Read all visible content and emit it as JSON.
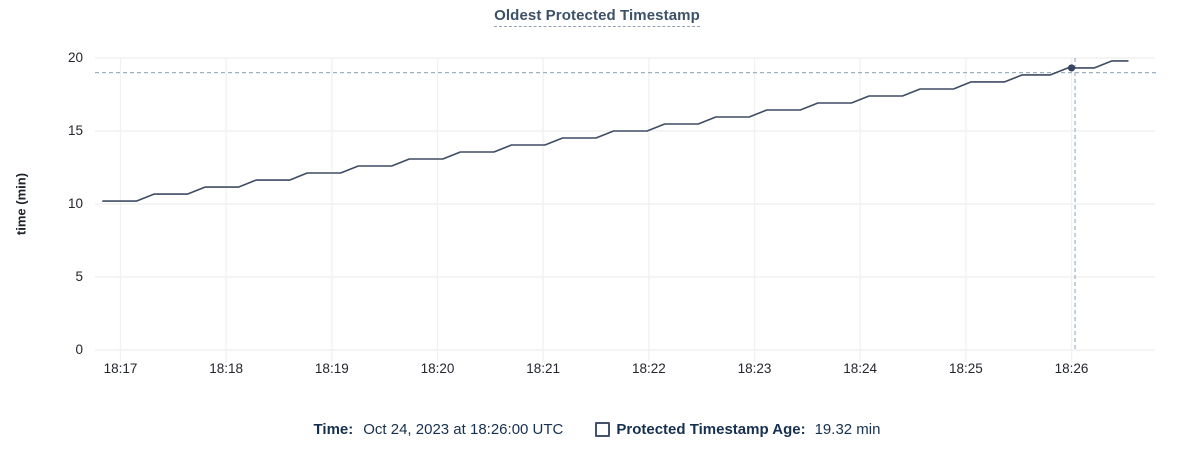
{
  "chart_data": {
    "type": "line",
    "title": "Oldest Protected Timestamp",
    "ylabel": "time (min)",
    "xlabel": "",
    "ylim": [
      0,
      20
    ],
    "y_ticks": [
      0,
      5,
      10,
      15,
      20
    ],
    "x_tick_labels": [
      "18:17",
      "18:18",
      "18:19",
      "18:20",
      "18:21",
      "18:22",
      "18:23",
      "18:24",
      "18:25",
      "18:26"
    ],
    "x_tick_times_s": [
      0,
      60,
      120,
      180,
      240,
      300,
      360,
      420,
      480,
      540
    ],
    "x_range_s": [
      -10,
      572
    ],
    "grid": true,
    "legend_position": "bottom",
    "series": [
      {
        "name": "Protected Timestamp Age",
        "unit": "min",
        "points": [
          [
            -10,
            10.2
          ],
          [
            9,
            10.2
          ],
          [
            19,
            10.68
          ],
          [
            38,
            10.68
          ],
          [
            48,
            11.16
          ],
          [
            67,
            11.16
          ],
          [
            77,
            11.64
          ],
          [
            96,
            11.64
          ],
          [
            106,
            12.12
          ],
          [
            125,
            12.12
          ],
          [
            135,
            12.6
          ],
          [
            154,
            12.6
          ],
          [
            164,
            13.08
          ],
          [
            183,
            13.08
          ],
          [
            193,
            13.56
          ],
          [
            212,
            13.56
          ],
          [
            222,
            14.04
          ],
          [
            241,
            14.04
          ],
          [
            251,
            14.52
          ],
          [
            270,
            14.52
          ],
          [
            280,
            15.0
          ],
          [
            299,
            15.0
          ],
          [
            309,
            15.48
          ],
          [
            328,
            15.48
          ],
          [
            338,
            15.96
          ],
          [
            357,
            15.96
          ],
          [
            367,
            16.44
          ],
          [
            386,
            16.44
          ],
          [
            396,
            16.92
          ],
          [
            415,
            16.92
          ],
          [
            425,
            17.4
          ],
          [
            444,
            17.4
          ],
          [
            454,
            17.88
          ],
          [
            473,
            17.88
          ],
          [
            483,
            18.36
          ],
          [
            502,
            18.36
          ],
          [
            512,
            18.84
          ],
          [
            528,
            18.84
          ],
          [
            538,
            19.32
          ],
          [
            553,
            19.32
          ],
          [
            563,
            19.8
          ],
          [
            572,
            19.8
          ]
        ]
      }
    ],
    "hover": {
      "point": {
        "time_s": 540,
        "value": 19.32
      },
      "cursor": {
        "time_s": 542,
        "value": 19.0
      }
    }
  },
  "legend": {
    "time_label": "Time:",
    "time_value": "Oct 24, 2023 at 18:26:00 UTC",
    "series_label": "Protected Timestamp Age:",
    "series_value": "19.32 min",
    "checkbox_checked": false
  },
  "colors": {
    "line": "#3e4c64",
    "dot": "#36445d",
    "grid_h": "#ededed",
    "grid_v": "#f1f1f1",
    "crosshair": "#9fb1c1",
    "title": "#3c5168",
    "axis_text": "#23262d",
    "legend_text": "#16304f"
  }
}
